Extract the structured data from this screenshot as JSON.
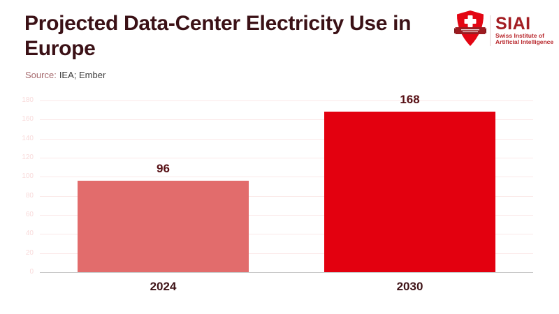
{
  "header": {
    "title_line1": "Projected Data-Center Electricity Use in",
    "title_line2": "Europe",
    "source_label": "Source:",
    "source_value": "IEA; Ember"
  },
  "logo": {
    "acronym": "SIAI",
    "name_line1": "Swiss Institute of",
    "name_line2": "Artificial Intelligence",
    "colors": {
      "shield_red": "#e30613",
      "banner_dark_red": "#9c1b20",
      "acronym_red": "#a31e23",
      "subname_red": "#b8262b"
    }
  },
  "chart_data": {
    "type": "bar",
    "title": "Projected Data-Center Electricity Use in Europe",
    "source": "IEA; Ember",
    "categories": [
      "2024",
      "2030"
    ],
    "values": [
      96,
      168
    ],
    "value_labels": [
      "96",
      "168"
    ],
    "ylim": [
      0,
      180
    ],
    "yticks": [
      0,
      20,
      40,
      60,
      80,
      100,
      120,
      140,
      160,
      180
    ],
    "grid": "horizontal",
    "legend": "none",
    "bar_colors": [
      "#e26c6c",
      "#e3000f"
    ],
    "value_label_color": "#571015",
    "x_label_color": "#3f1418",
    "tick_label_color": "#f8dada",
    "gridline_color": "#fbe9e8",
    "axis_line_color": "#c9c9c9",
    "title_color": "#3b1116",
    "source_label_color": "#a5696d",
    "source_value_color": "#3c3c3c"
  }
}
